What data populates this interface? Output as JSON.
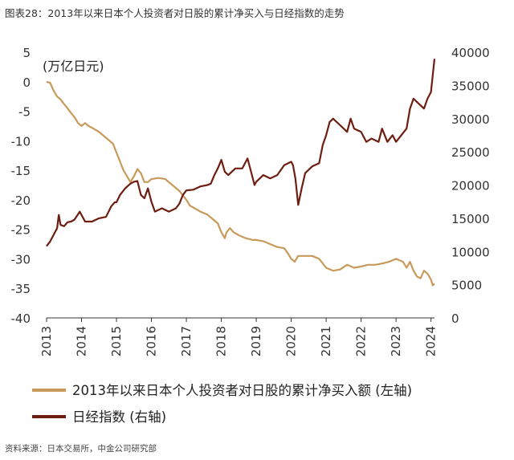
{
  "figure_title": "图表28：2013年以来日本个人投资者对日股的累计净买入与日经指数的走势",
  "source_text": "资料来源：日本交易所，中金公司研究部",
  "unit_label": "(万亿日元)",
  "colors": {
    "left_series": "#c89a5a",
    "right_series": "#6e1e10",
    "axis": "#333333"
  },
  "chart_data": {
    "type": "line",
    "title": "",
    "x_ticks": [
      "2013",
      "2014",
      "2015",
      "2016",
      "2017",
      "2018",
      "2019",
      "2020",
      "2021",
      "2022",
      "2023",
      "2024"
    ],
    "x_range": [
      2013,
      2024.1
    ],
    "y_left": {
      "label": "(万亿日元)",
      "range": [
        -40,
        5
      ],
      "ticks": [
        5,
        0,
        -5,
        -10,
        -15,
        -20,
        -25,
        -30,
        -35,
        -40
      ]
    },
    "y_right": {
      "range": [
        0,
        40000
      ],
      "ticks": [
        40000,
        35000,
        30000,
        25000,
        20000,
        15000,
        10000,
        5000,
        0
      ]
    },
    "legend_position": "bottom",
    "series": [
      {
        "name": "2013年以来日本个人投资者对日股的累计净买入额 (左轴)",
        "axis": "left",
        "points": [
          [
            2013.0,
            0.0
          ],
          [
            2013.1,
            -0.2
          ],
          [
            2013.2,
            -1.5
          ],
          [
            2013.3,
            -2.5
          ],
          [
            2013.4,
            -3.0
          ],
          [
            2013.5,
            -3.8
          ],
          [
            2013.6,
            -4.5
          ],
          [
            2013.7,
            -5.3
          ],
          [
            2013.8,
            -6.0
          ],
          [
            2013.9,
            -7.0
          ],
          [
            2014.0,
            -7.5
          ],
          [
            2014.1,
            -7.0
          ],
          [
            2014.2,
            -7.5
          ],
          [
            2014.3,
            -7.8
          ],
          [
            2014.5,
            -8.5
          ],
          [
            2014.7,
            -9.5
          ],
          [
            2014.9,
            -10.5
          ],
          [
            2015.0,
            -12.0
          ],
          [
            2015.1,
            -13.5
          ],
          [
            2015.2,
            -15.0
          ],
          [
            2015.3,
            -16.0
          ],
          [
            2015.4,
            -17.0
          ],
          [
            2015.5,
            -16.0
          ],
          [
            2015.6,
            -14.8
          ],
          [
            2015.7,
            -15.5
          ],
          [
            2015.8,
            -17.0
          ],
          [
            2015.9,
            -17.0
          ],
          [
            2016.0,
            -16.5
          ],
          [
            2016.2,
            -16.3
          ],
          [
            2016.4,
            -16.5
          ],
          [
            2016.6,
            -17.5
          ],
          [
            2016.8,
            -18.5
          ],
          [
            2017.0,
            -20.0
          ],
          [
            2017.1,
            -21.0
          ],
          [
            2017.2,
            -21.3
          ],
          [
            2017.4,
            -22.0
          ],
          [
            2017.6,
            -22.5
          ],
          [
            2017.8,
            -23.5
          ],
          [
            2017.9,
            -24.0
          ],
          [
            2018.0,
            -25.5
          ],
          [
            2018.1,
            -26.5
          ],
          [
            2018.15,
            -25.5
          ],
          [
            2018.25,
            -24.8
          ],
          [
            2018.35,
            -25.5
          ],
          [
            2018.5,
            -26.0
          ],
          [
            2018.7,
            -26.5
          ],
          [
            2018.9,
            -26.8
          ],
          [
            2019.0,
            -26.8
          ],
          [
            2019.2,
            -27.0
          ],
          [
            2019.4,
            -27.5
          ],
          [
            2019.6,
            -28.0
          ],
          [
            2019.8,
            -28.2
          ],
          [
            2019.9,
            -29.0
          ],
          [
            2020.0,
            -30.0
          ],
          [
            2020.1,
            -30.5
          ],
          [
            2020.2,
            -29.5
          ],
          [
            2020.4,
            -29.5
          ],
          [
            2020.6,
            -29.5
          ],
          [
            2020.8,
            -30.0
          ],
          [
            2021.0,
            -31.5
          ],
          [
            2021.2,
            -32.0
          ],
          [
            2021.4,
            -31.8
          ],
          [
            2021.6,
            -31.0
          ],
          [
            2021.8,
            -31.5
          ],
          [
            2022.0,
            -31.3
          ],
          [
            2022.2,
            -31.0
          ],
          [
            2022.4,
            -31.0
          ],
          [
            2022.6,
            -30.8
          ],
          [
            2022.8,
            -30.5
          ],
          [
            2023.0,
            -30.0
          ],
          [
            2023.2,
            -30.5
          ],
          [
            2023.3,
            -31.5
          ],
          [
            2023.4,
            -30.5
          ],
          [
            2023.5,
            -32.0
          ],
          [
            2023.6,
            -33.0
          ],
          [
            2023.7,
            -33.3
          ],
          [
            2023.8,
            -32.0
          ],
          [
            2023.9,
            -32.5
          ],
          [
            2024.0,
            -33.5
          ],
          [
            2024.05,
            -34.5
          ],
          [
            2024.1,
            -34.2
          ]
        ]
      },
      {
        "name": "日经指数 (右轴)",
        "axis": "right",
        "points": [
          [
            2013.0,
            10800
          ],
          [
            2013.1,
            11500
          ],
          [
            2013.2,
            12500
          ],
          [
            2013.3,
            13500
          ],
          [
            2013.35,
            15500
          ],
          [
            2013.4,
            14000
          ],
          [
            2013.5,
            13800
          ],
          [
            2013.6,
            14400
          ],
          [
            2013.7,
            14500
          ],
          [
            2013.8,
            14800
          ],
          [
            2013.95,
            16000
          ],
          [
            2014.0,
            15500
          ],
          [
            2014.1,
            14500
          ],
          [
            2014.3,
            14500
          ],
          [
            2014.5,
            15000
          ],
          [
            2014.7,
            15200
          ],
          [
            2014.85,
            16800
          ],
          [
            2014.95,
            17400
          ],
          [
            2015.0,
            17400
          ],
          [
            2015.1,
            18500
          ],
          [
            2015.25,
            19500
          ],
          [
            2015.4,
            20200
          ],
          [
            2015.5,
            20500
          ],
          [
            2015.6,
            20600
          ],
          [
            2015.7,
            18500
          ],
          [
            2015.8,
            18000
          ],
          [
            2015.9,
            19500
          ],
          [
            2016.0,
            17500
          ],
          [
            2016.1,
            16000
          ],
          [
            2016.3,
            16500
          ],
          [
            2016.5,
            16000
          ],
          [
            2016.7,
            16500
          ],
          [
            2016.8,
            17200
          ],
          [
            2016.9,
            18500
          ],
          [
            2017.0,
            19200
          ],
          [
            2017.2,
            19300
          ],
          [
            2017.4,
            19800
          ],
          [
            2017.6,
            20000
          ],
          [
            2017.7,
            20200
          ],
          [
            2017.8,
            21500
          ],
          [
            2017.9,
            22500
          ],
          [
            2018.0,
            23800
          ],
          [
            2018.1,
            22000
          ],
          [
            2018.2,
            21500
          ],
          [
            2018.4,
            22500
          ],
          [
            2018.6,
            22500
          ],
          [
            2018.75,
            24000
          ],
          [
            2018.85,
            22000
          ],
          [
            2018.95,
            20000
          ],
          [
            2019.0,
            20500
          ],
          [
            2019.2,
            21500
          ],
          [
            2019.4,
            21000
          ],
          [
            2019.6,
            21500
          ],
          [
            2019.8,
            23000
          ],
          [
            2020.0,
            23500
          ],
          [
            2020.05,
            23000
          ],
          [
            2020.12,
            21000
          ],
          [
            2020.2,
            17000
          ],
          [
            2020.3,
            19500
          ],
          [
            2020.4,
            21800
          ],
          [
            2020.6,
            22800
          ],
          [
            2020.8,
            23300
          ],
          [
            2020.9,
            26000
          ],
          [
            2021.0,
            27500
          ],
          [
            2021.1,
            29500
          ],
          [
            2021.2,
            30000
          ],
          [
            2021.4,
            29000
          ],
          [
            2021.6,
            28000
          ],
          [
            2021.7,
            30000
          ],
          [
            2021.8,
            28500
          ],
          [
            2022.0,
            28000
          ],
          [
            2022.15,
            26500
          ],
          [
            2022.3,
            27000
          ],
          [
            2022.5,
            26500
          ],
          [
            2022.6,
            28500
          ],
          [
            2022.75,
            26500
          ],
          [
            2022.9,
            27500
          ],
          [
            2023.0,
            26500
          ],
          [
            2023.15,
            27500
          ],
          [
            2023.3,
            28500
          ],
          [
            2023.4,
            31500
          ],
          [
            2023.5,
            33000
          ],
          [
            2023.6,
            32500
          ],
          [
            2023.7,
            32000
          ],
          [
            2023.8,
            31500
          ],
          [
            2023.9,
            33000
          ],
          [
            2024.0,
            34000
          ],
          [
            2024.05,
            36500
          ],
          [
            2024.1,
            39000
          ]
        ]
      }
    ]
  }
}
